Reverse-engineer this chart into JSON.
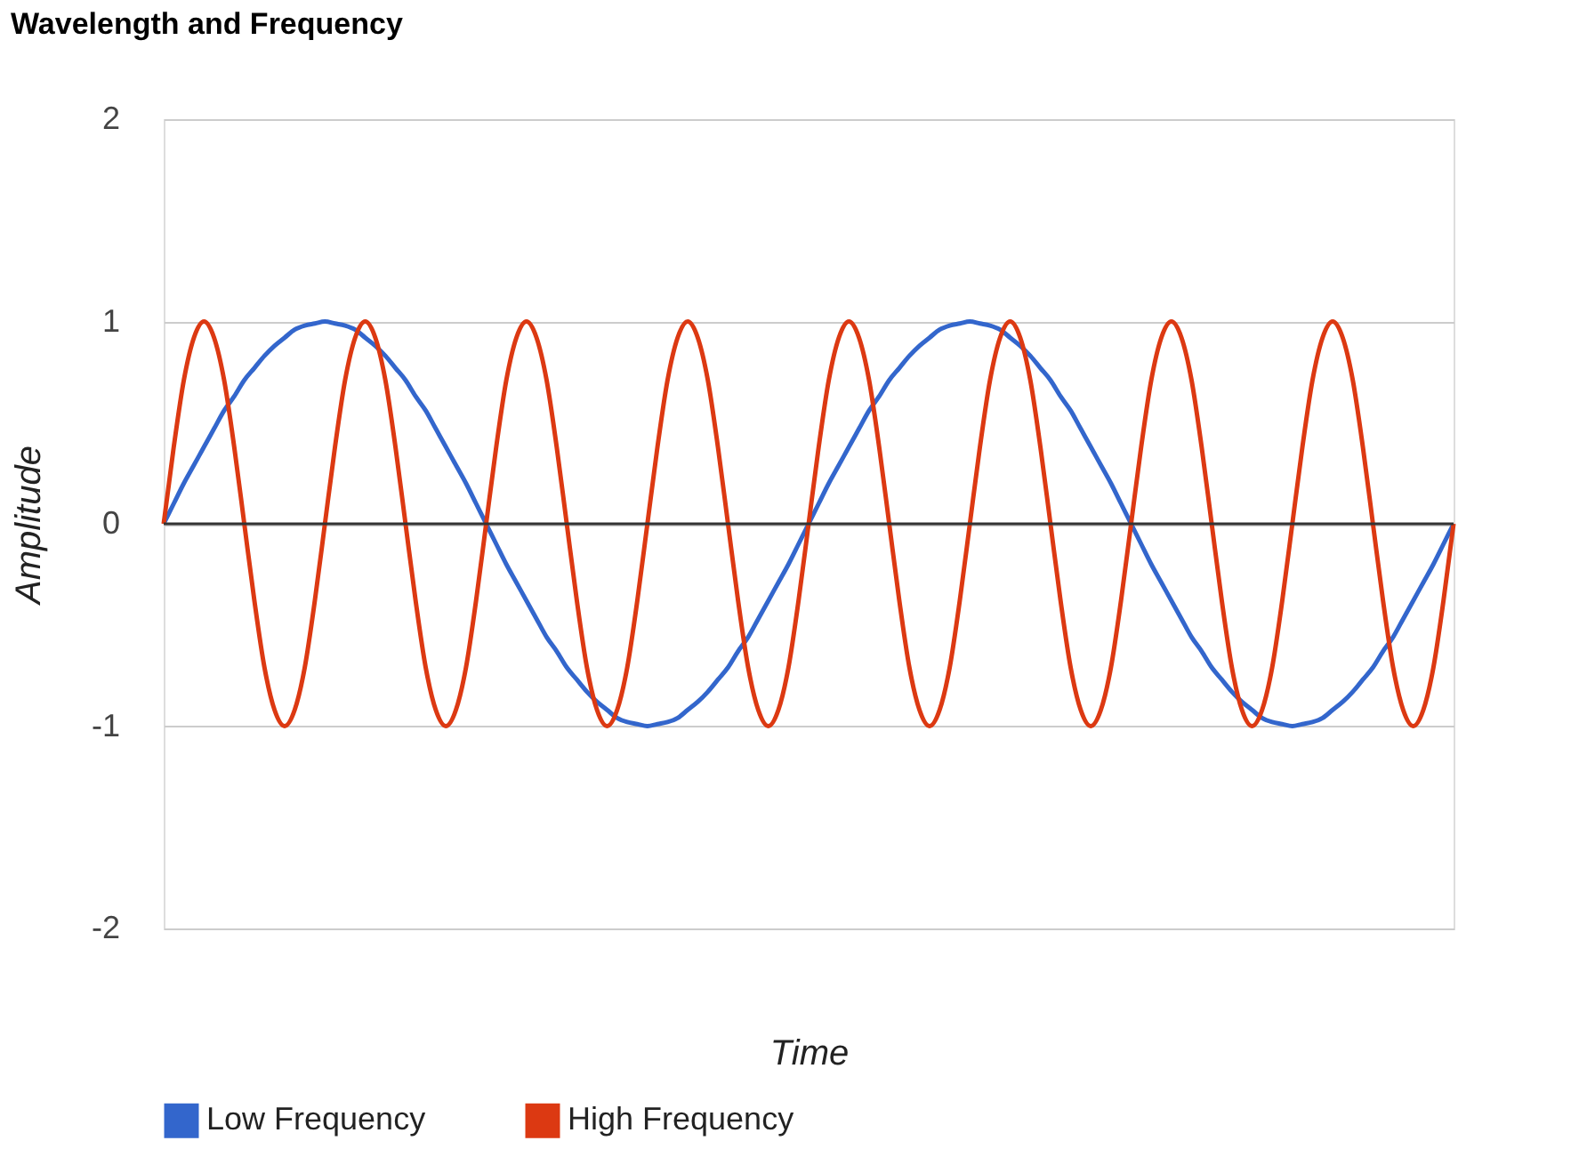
{
  "chart_data": {
    "type": "line",
    "title": "Wavelength and Frequency",
    "xlabel": "Time",
    "ylabel": "Amplitude",
    "categories": [
      null,
      null,
      null,
      null,
      null,
      null,
      null,
      null,
      null,
      null,
      null,
      null,
      null,
      null,
      null,
      null,
      null,
      null,
      null,
      null,
      null,
      null,
      null,
      null,
      null,
      null,
      null,
      null,
      null,
      null,
      null,
      null,
      null,
      null,
      null,
      null,
      null,
      null,
      null,
      null,
      null,
      null,
      null,
      null,
      null,
      null,
      null,
      null,
      null,
      null,
      null,
      null,
      null,
      null,
      null,
      null,
      null,
      null,
      null,
      null,
      null,
      null,
      null,
      null,
      null,
      null,
      null,
      null,
      null,
      null,
      null,
      null,
      null,
      null,
      null,
      null,
      null,
      null,
      null,
      null,
      null,
      null,
      null,
      null,
      null,
      null,
      null,
      null,
      null,
      null,
      null,
      null,
      null,
      null,
      null,
      null,
      null,
      null,
      null,
      null,
      null,
      null,
      null,
      null,
      null,
      null,
      null,
      null,
      null,
      null,
      null,
      null,
      null,
      null,
      null,
      null,
      null,
      null,
      null,
      null,
      null,
      null,
      null,
      null,
      null,
      null,
      null,
      null,
      null
    ],
    "series": [
      {
        "name": "Low Frequency",
        "color": "#3366cc",
        "values": [
          0,
          0.1,
          0.2,
          0.29,
          0.38,
          0.47,
          0.56,
          0.63,
          0.71,
          0.77,
          0.83,
          0.88,
          0.92,
          0.96,
          0.98,
          0.99,
          1,
          0.99,
          0.98,
          0.96,
          0.92,
          0.88,
          0.83,
          0.77,
          0.71,
          0.63,
          0.56,
          0.47,
          0.38,
          0.29,
          0.2,
          0.1,
          0,
          -0.1,
          -0.2,
          -0.29,
          -0.38,
          -0.47,
          -0.56,
          -0.63,
          -0.71,
          -0.77,
          -0.83,
          -0.88,
          -0.92,
          -0.96,
          -0.98,
          -0.99,
          -1,
          -0.99,
          -0.98,
          -0.96,
          -0.92,
          -0.88,
          -0.83,
          -0.77,
          -0.71,
          -0.63,
          -0.56,
          -0.47,
          -0.38,
          -0.29,
          -0.2,
          -0.1,
          0,
          0.1,
          0.2,
          0.29,
          0.38,
          0.47,
          0.56,
          0.63,
          0.71,
          0.77,
          0.83,
          0.88,
          0.92,
          0.96,
          0.98,
          0.99,
          1,
          0.99,
          0.98,
          0.96,
          0.92,
          0.88,
          0.83,
          0.77,
          0.71,
          0.63,
          0.56,
          0.47,
          0.38,
          0.29,
          0.2,
          0.1,
          0,
          -0.1,
          -0.2,
          -0.29,
          -0.38,
          -0.47,
          -0.56,
          -0.63,
          -0.71,
          -0.77,
          -0.83,
          -0.88,
          -0.92,
          -0.96,
          -0.98,
          -0.99,
          -1,
          -0.99,
          -0.98,
          -0.96,
          -0.92,
          -0.88,
          -0.83,
          -0.77,
          -0.71,
          -0.63,
          -0.56,
          -0.47,
          -0.38,
          -0.29,
          -0.2,
          -0.1,
          0
        ]
      },
      {
        "name": "High Frequency",
        "color": "#dc3912",
        "values": [
          0,
          0.38,
          0.71,
          0.92,
          1,
          0.92,
          0.71,
          0.38,
          0,
          -0.38,
          -0.71,
          -0.92,
          -1,
          -0.92,
          -0.71,
          -0.38,
          0,
          0.38,
          0.71,
          0.92,
          1,
          0.92,
          0.71,
          0.38,
          0,
          -0.38,
          -0.71,
          -0.92,
          -1,
          -0.92,
          -0.71,
          -0.38,
          0,
          0.38,
          0.71,
          0.92,
          1,
          0.92,
          0.71,
          0.38,
          0,
          -0.38,
          -0.71,
          -0.92,
          -1,
          -0.92,
          -0.71,
          -0.38,
          0,
          0.38,
          0.71,
          0.92,
          1,
          0.92,
          0.71,
          0.38,
          0,
          -0.38,
          -0.71,
          -0.92,
          -1,
          -0.92,
          -0.71,
          -0.38,
          0,
          0.38,
          0.71,
          0.92,
          1,
          0.92,
          0.71,
          0.38,
          0,
          -0.38,
          -0.71,
          -0.92,
          -1,
          -0.92,
          -0.71,
          -0.38,
          0,
          0.38,
          0.71,
          0.92,
          1,
          0.92,
          0.71,
          0.38,
          0,
          -0.38,
          -0.71,
          -0.92,
          -1,
          -0.92,
          -0.71,
          -0.38,
          0,
          0.38,
          0.71,
          0.92,
          1,
          0.92,
          0.71,
          0.38,
          0,
          -0.38,
          -0.71,
          -0.92,
          -1,
          -0.92,
          -0.71,
          -0.38,
          0,
          0.38,
          0.71,
          0.92,
          1,
          0.92,
          0.71,
          0.38,
          0,
          -0.38,
          -0.71,
          -0.92,
          -1,
          -0.92,
          -0.71,
          -0.38,
          0
        ]
      }
    ],
    "ylim": [
      -2,
      2
    ],
    "yticks": [
      -2,
      -1,
      0,
      1,
      2
    ],
    "grid": "y",
    "legend": "bottom",
    "tick_labels": "y",
    "ref_lines": [
      {
        "axis": "y",
        "value": 0,
        "color": "#333333"
      }
    ]
  }
}
